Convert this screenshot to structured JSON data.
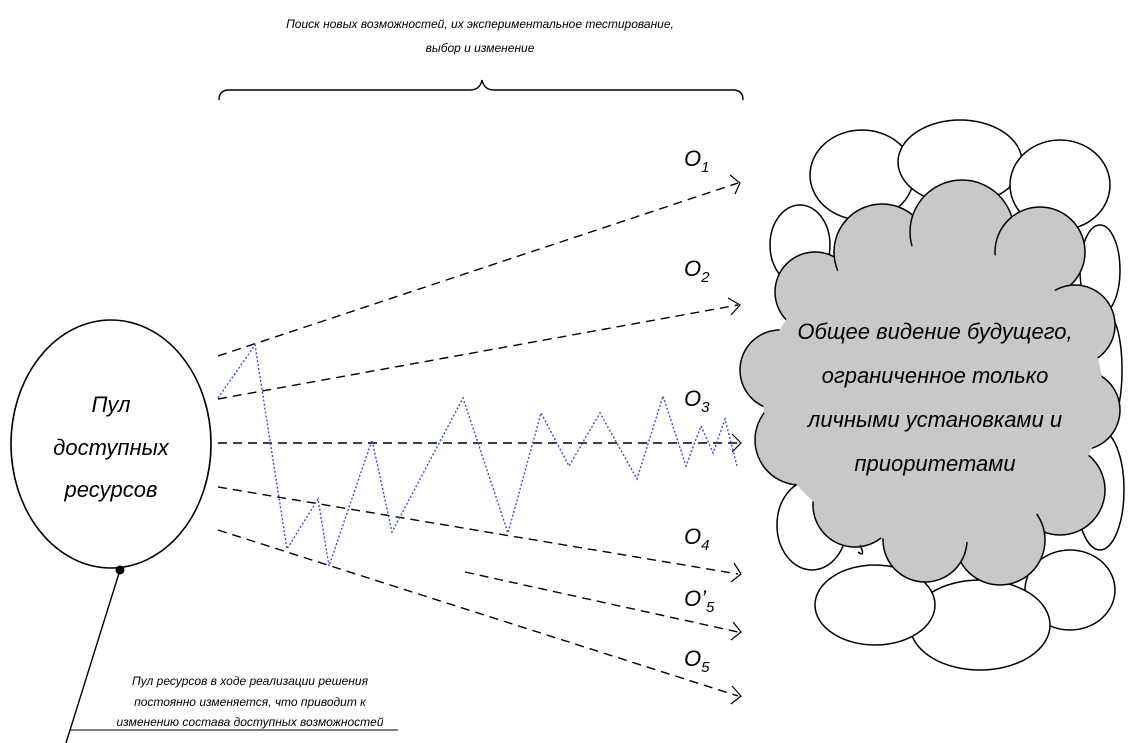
{
  "top_note": {
    "line1": "Поиск новых возможностей, их экспериментальное тестирование,",
    "line2": "выбор и изменение"
  },
  "pool": {
    "line1": "Пул",
    "line2": "доступных",
    "line3": "ресурсов"
  },
  "options": [
    {
      "letter": "O",
      "sub": "1"
    },
    {
      "letter": "O",
      "sub": "2"
    },
    {
      "letter": "O",
      "sub": "3"
    },
    {
      "letter": "O",
      "sub": "4"
    },
    {
      "letter": "O’",
      "sub": "5"
    },
    {
      "letter": "O",
      "sub": "5"
    }
  ],
  "vision": {
    "line1": "Общее видение будущего,",
    "line2": "ограниченное только",
    "line3": "личными установками и",
    "line4": "приоритетами"
  },
  "bottom_note": {
    "line1": "Пул ресурсов в ходе реализации решения",
    "line2": "постоянно изменяется, что приводит к",
    "line3": "изменению состава доступных возможностей"
  },
  "colors": {
    "cloud_fill": "#c8c8c8",
    "zigzag": "#3a4de6",
    "lines": "#000000"
  }
}
